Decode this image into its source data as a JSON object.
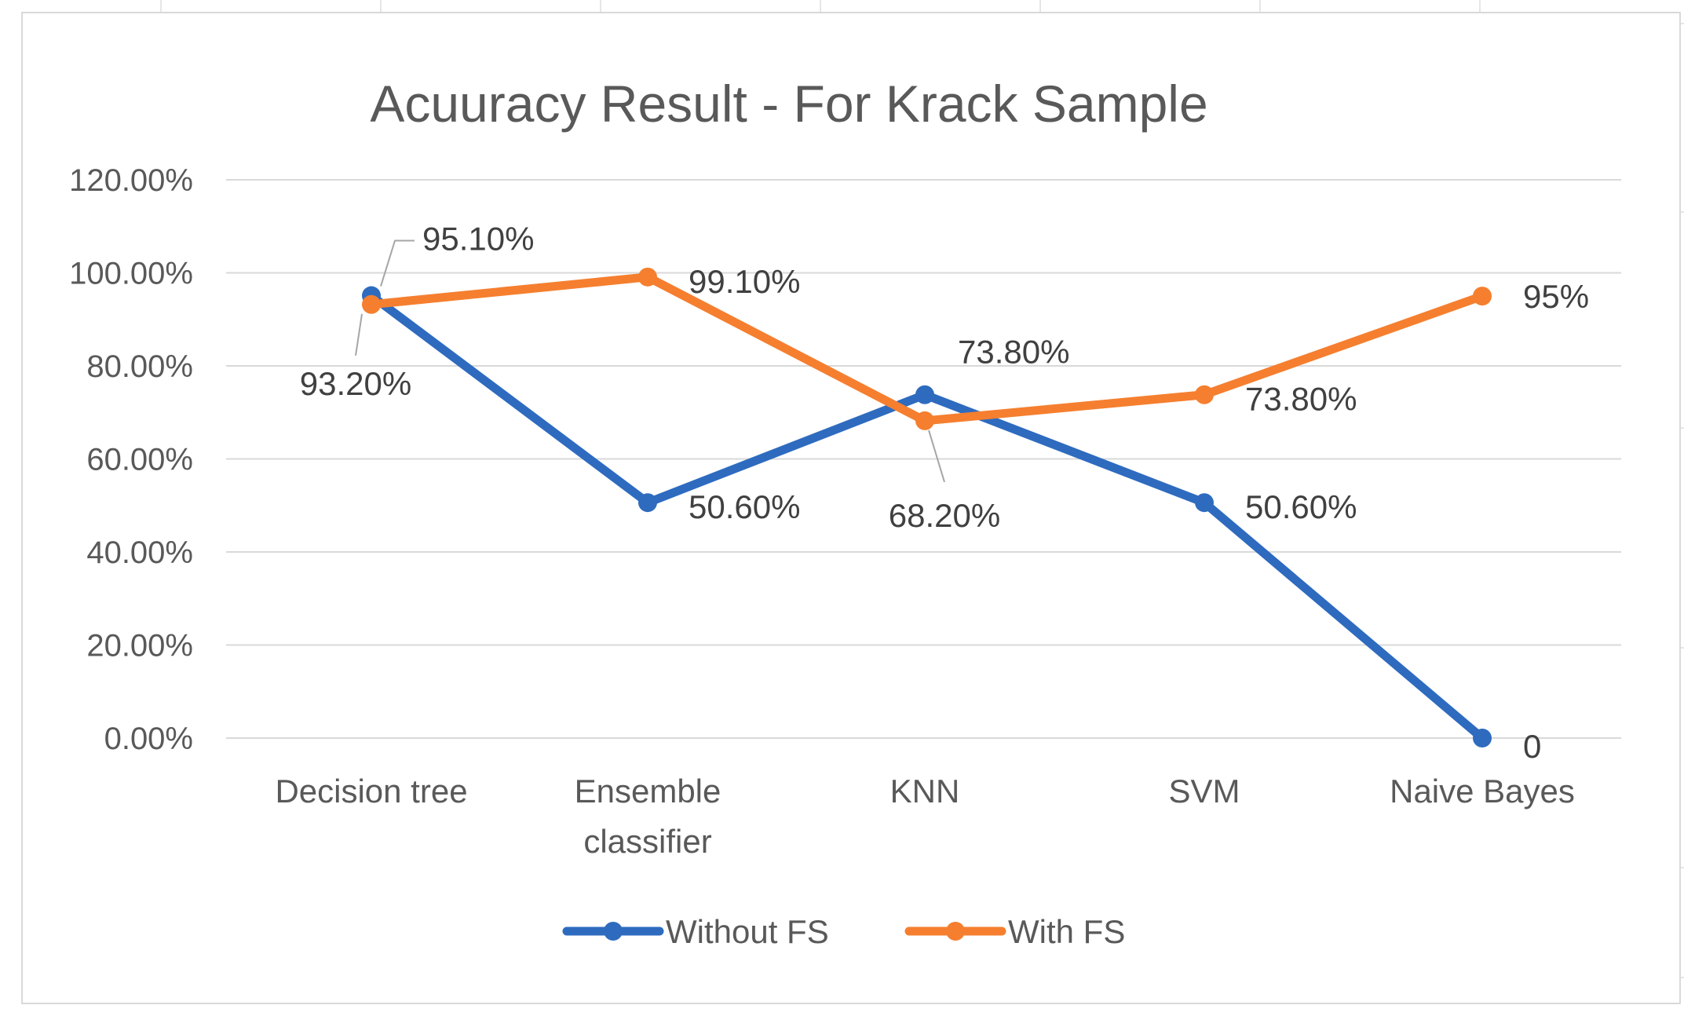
{
  "chart_data": {
    "type": "line",
    "title": "Acuuracy Result - For Krack Sample",
    "xlabel": "",
    "ylabel": "",
    "categories": [
      [
        "Decision tree"
      ],
      [
        "Ensemble",
        "classifier"
      ],
      [
        "KNN"
      ],
      [
        "SVM"
      ],
      [
        "Naive Bayes"
      ]
    ],
    "ylim": [
      0,
      1.2
    ],
    "yticks": [
      {
        "value": 0,
        "label": "0.00%"
      },
      {
        "value": 0.2,
        "label": "20.00%"
      },
      {
        "value": 0.4,
        "label": "40.00%"
      },
      {
        "value": 0.6,
        "label": "60.00%"
      },
      {
        "value": 0.8,
        "label": "80.00%"
      },
      {
        "value": 1.0,
        "label": "100.00%"
      },
      {
        "value": 1.2,
        "label": "120.00%"
      }
    ],
    "grid": true,
    "legend_position": "bottom",
    "series": [
      {
        "name": "Without FS",
        "color": "#2e6bbf",
        "values": [
          0.951,
          0.506,
          0.738,
          0.506,
          0
        ],
        "labels": [
          "95.10%",
          "50.60%",
          "73.80%",
          "50.60%",
          "0"
        ]
      },
      {
        "name": "With FS",
        "color": "#f57f2f",
        "values": [
          0.932,
          0.991,
          0.682,
          0.738,
          0.95
        ],
        "labels": [
          "93.20%",
          "99.10%",
          "68.20%",
          "73.80%",
          "95%"
        ]
      }
    ]
  }
}
